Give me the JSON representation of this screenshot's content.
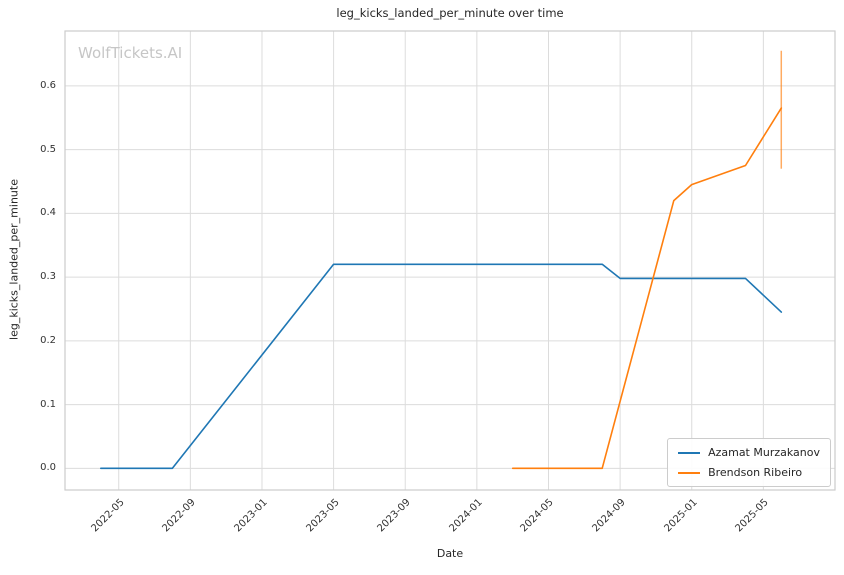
{
  "watermark": "WolfTickets.AI",
  "chart_data": {
    "type": "line",
    "title": "leg_kicks_landed_per_minute over time",
    "xlabel": "Date",
    "ylabel": "leg_kicks_landed_per_minute",
    "x_ticks": [
      "2022-05",
      "2022-09",
      "2023-01",
      "2023-05",
      "2023-09",
      "2024-01",
      "2024-05",
      "2024-09",
      "2025-01",
      "2025-05"
    ],
    "y_ticks": [
      0.0,
      0.1,
      0.2,
      0.3,
      0.4,
      0.5,
      0.6
    ],
    "xlim": [
      "2022-02",
      "2025-09"
    ],
    "ylim": [
      -0.034,
      0.686
    ],
    "grid": true,
    "legend_position": "lower right",
    "colors": {
      "grid": "#dcdcdc",
      "spine": "#cccccc",
      "series1": "#1f77b4",
      "series2": "#ff7f0e"
    },
    "series": [
      {
        "name": "Azamat Murzakanov",
        "color": "#1f77b4",
        "points": [
          {
            "date": "2022-04",
            "value": 0.0
          },
          {
            "date": "2022-08",
            "value": 0.0
          },
          {
            "date": "2023-05",
            "value": 0.32
          },
          {
            "date": "2024-08",
            "value": 0.32
          },
          {
            "date": "2024-09",
            "value": 0.298
          },
          {
            "date": "2025-04",
            "value": 0.298
          },
          {
            "date": "2025-06",
            "value": 0.245
          }
        ],
        "error_bars": []
      },
      {
        "name": "Brendson Ribeiro",
        "color": "#ff7f0e",
        "points": [
          {
            "date": "2024-03",
            "value": 0.0
          },
          {
            "date": "2024-08",
            "value": 0.0
          },
          {
            "date": "2024-12",
            "value": 0.42
          },
          {
            "date": "2025-01",
            "value": 0.445
          },
          {
            "date": "2025-04",
            "value": 0.475
          },
          {
            "date": "2025-06",
            "value": 0.565
          }
        ],
        "error_bars": [
          {
            "date": "2025-06",
            "low": 0.47,
            "high": 0.655
          }
        ]
      }
    ]
  }
}
